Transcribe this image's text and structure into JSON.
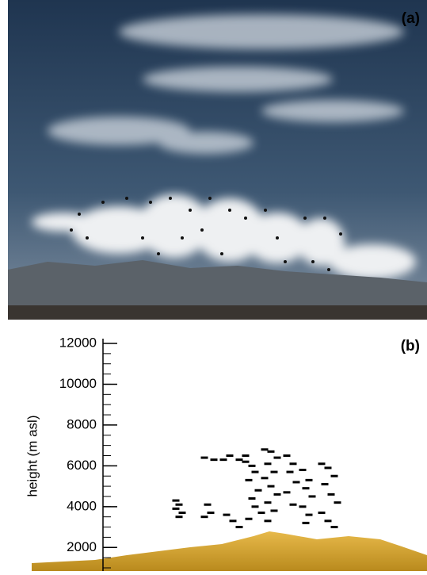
{
  "panel_a": {
    "label": "(a)"
  },
  "chart_data": {
    "type": "scatter",
    "label": "(b)",
    "y_label": "height (m asl)",
    "ylim": [
      1000,
      12000
    ],
    "yticks": [
      2000,
      4000,
      6000,
      8000,
      10000,
      12000
    ],
    "minor_tick_step": 500,
    "xlim": [
      0,
      100
    ],
    "color": "#000000",
    "x": [
      23,
      24,
      23,
      25,
      24,
      32,
      35,
      38,
      33,
      34,
      32,
      40,
      43,
      45,
      39,
      41,
      43,
      45,
      47,
      48,
      46,
      49,
      47,
      48,
      50,
      46,
      51,
      53,
      55,
      52,
      54,
      51,
      53,
      55,
      52,
      54,
      52,
      58,
      60,
      59,
      61,
      58,
      60,
      63,
      65,
      64,
      66,
      63,
      65,
      64,
      69,
      71,
      73,
      70,
      72,
      74,
      69,
      71,
      73
    ],
    "values": [
      4300,
      4100,
      3900,
      3700,
      3500,
      6400,
      6300,
      6300,
      4100,
      3700,
      3500,
      6500,
      6300,
      6200,
      3600,
      3300,
      3000,
      6500,
      6000,
      5700,
      5300,
      4800,
      4400,
      4000,
      3700,
      3400,
      6800,
      6700,
      6400,
      6100,
      5700,
      5400,
      5000,
      4600,
      4200,
      3800,
      3300,
      6500,
      6100,
      5700,
      5200,
      4700,
      4100,
      5800,
      5300,
      4900,
      4500,
      4000,
      3600,
      3200,
      6100,
      5900,
      5500,
      5100,
      4600,
      4200,
      3700,
      3300,
      3000
    ]
  }
}
